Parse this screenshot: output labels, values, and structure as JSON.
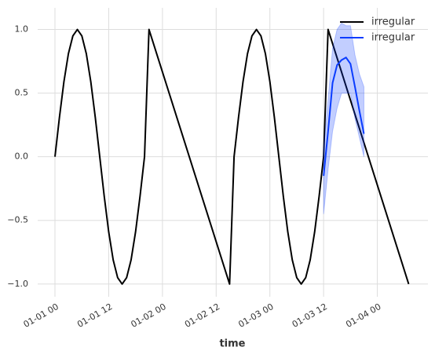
{
  "chart_data": {
    "type": "line",
    "xlabel": "time",
    "xlim": [
      -3.86,
      83.3
    ],
    "ylim": [
      -1.1,
      1.17
    ],
    "xticks": [
      {
        "value": 0,
        "label": "01-01 00"
      },
      {
        "value": 12,
        "label": "01-01 12"
      },
      {
        "value": 24,
        "label": "01-02 00"
      },
      {
        "value": 36,
        "label": "01-02 12"
      },
      {
        "value": 48,
        "label": "01-03 00"
      },
      {
        "value": 60,
        "label": "01-03 12"
      },
      {
        "value": 72,
        "label": "01-04 00"
      }
    ],
    "yticks": [
      {
        "value": -1,
        "label": "−1.0"
      },
      {
        "value": -0.5,
        "label": "−0.5"
      },
      {
        "value": 0,
        "label": "0.0"
      },
      {
        "value": 0.5,
        "label": "0.5"
      },
      {
        "value": 1,
        "label": "1.0"
      }
    ],
    "grid": true,
    "legend": "upper right",
    "series": [
      {
        "name": "irregular",
        "color": "#000000",
        "x": [
          0,
          1,
          2,
          3,
          4,
          5,
          6,
          7,
          8,
          9,
          10,
          11,
          12,
          13,
          14,
          15,
          16,
          17,
          18,
          19,
          20,
          21,
          39,
          40,
          41,
          42,
          43,
          44,
          45,
          46,
          47,
          48,
          49,
          50,
          51,
          52,
          53,
          54,
          55,
          56,
          57,
          58,
          59,
          60,
          61,
          79
        ],
        "values": [
          0,
          0.31,
          0.59,
          0.81,
          0.95,
          1,
          0.95,
          0.81,
          0.59,
          0.31,
          0,
          -0.31,
          -0.59,
          -0.81,
          -0.95,
          -1,
          -0.95,
          -0.81,
          -0.59,
          -0.31,
          0,
          1,
          -1,
          0,
          0.31,
          0.59,
          0.81,
          0.95,
          1,
          0.95,
          0.81,
          0.59,
          0.31,
          0,
          -0.31,
          -0.59,
          -0.81,
          -0.95,
          -1,
          -0.95,
          -0.81,
          -0.59,
          -0.31,
          0,
          1,
          -1
        ]
      },
      {
        "name": "irregular",
        "color": "#0a3cff",
        "x": [
          60,
          61,
          62,
          63,
          64,
          65,
          66,
          67,
          68,
          69
        ],
        "values": [
          -0.15,
          0.2,
          0.58,
          0.72,
          0.76,
          0.78,
          0.73,
          0.55,
          0.36,
          0.18
        ],
        "lower": [
          -0.45,
          -0.1,
          0.2,
          0.38,
          0.5,
          0.5,
          0.5,
          0.3,
          0.15,
          0.0
        ],
        "upper": [
          0.06,
          0.45,
          0.85,
          1.0,
          1.05,
          1.03,
          1.03,
          0.8,
          0.65,
          0.55
        ]
      }
    ]
  }
}
